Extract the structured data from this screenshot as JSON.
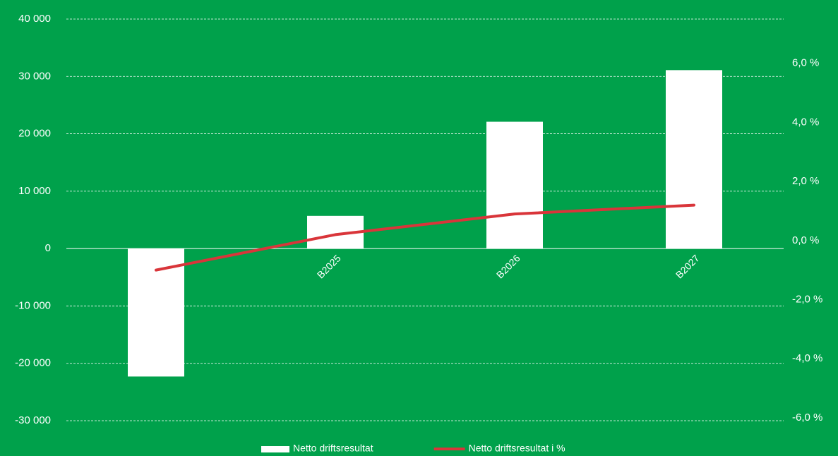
{
  "chart_data": {
    "type": "bar_line",
    "categories": [
      null,
      "B2025",
      "B2026",
      "B2027"
    ],
    "series": [
      {
        "name": "Netto driftsresultat",
        "color": "#ffffff",
        "type": "bar",
        "values": [
          -22300,
          5700,
          22100,
          31100
        ]
      },
      {
        "name": "Netto driftsresultat i %",
        "color": "#d9353a",
        "type": "line",
        "axis": "y2",
        "values": [
          -1.0,
          0.2,
          0.9,
          1.2
        ]
      }
    ],
    "ylim": [
      -30000,
      40000
    ],
    "yticks": [
      {
        "value": -30000,
        "label": "-30 000"
      },
      {
        "value": -20000,
        "label": "-20 000"
      },
      {
        "value": -10000,
        "label": "-10 000"
      },
      0,
      {
        "value": 10000,
        "label": "10 000"
      },
      {
        "value": 20000,
        "label": "20 000"
      },
      {
        "value": 30000,
        "label": "30 000"
      },
      {
        "value": 40000,
        "label": "40 000"
      }
    ],
    "y2lim": [
      -6.1,
      7.5
    ],
    "y2ticks": [
      {
        "value": -6,
        "label": "-6,0 %"
      },
      {
        "value": -4,
        "label": "-4,0 %"
      },
      {
        "value": -2,
        "label": "-2,0 %"
      },
      {
        "value": 0,
        "label": "0,0 %"
      },
      {
        "value": 2,
        "label": "2,0 %"
      },
      {
        "value": 4,
        "label": "4,0 %"
      },
      {
        "value": 6,
        "label": "6,0 %"
      }
    ],
    "grid": true,
    "legend": "bottom"
  }
}
